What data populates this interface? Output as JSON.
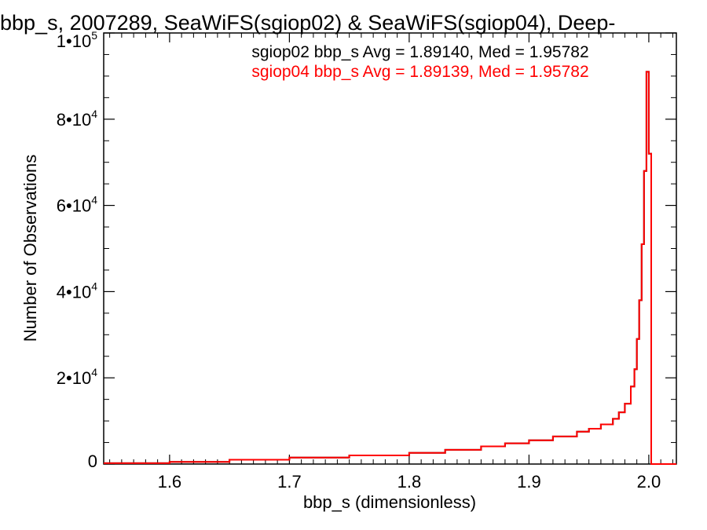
{
  "chart_data": {
    "type": "line",
    "title": "bbp_s, 2007289, SeaWiFS(sgiop02) & SeaWiFS(sgiop04), Deep-",
    "xlabel": "bbp_s (dimensionless)",
    "ylabel": "Number of Observations",
    "xlim": [
      1.545,
      2.023
    ],
    "ylim": [
      0,
      100000
    ],
    "grid": false,
    "legend_placement": "top-right",
    "x_ticks": [
      {
        "value": 1.6,
        "label": "1.6"
      },
      {
        "value": 1.7,
        "label": "1.7"
      },
      {
        "value": 1.8,
        "label": "1.8"
      },
      {
        "value": 1.9,
        "label": "1.9"
      },
      {
        "value": 2.0,
        "label": "2.0"
      }
    ],
    "y_ticks": [
      {
        "value": 0,
        "mantissa": "0",
        "exponent": ""
      },
      {
        "value": 20000,
        "mantissa": "2•10",
        "exponent": "4"
      },
      {
        "value": 40000,
        "mantissa": "4•10",
        "exponent": "4"
      },
      {
        "value": 60000,
        "mantissa": "6•10",
        "exponent": "4"
      },
      {
        "value": 80000,
        "mantissa": "8•10",
        "exponent": "4"
      },
      {
        "value": 100000,
        "mantissa": "1•10",
        "exponent": "5"
      }
    ],
    "stats": [
      {
        "text": "sgiop02 bbp_s Avg = 1.89140, Med = 1.95782",
        "color": "#000000"
      },
      {
        "text": "sgiop04 bbp_s Avg = 1.89139, Med = 1.95782",
        "color": "#ff0000"
      }
    ],
    "series": [
      {
        "color": "#000000",
        "x": [
          1.545,
          1.6,
          1.65,
          1.7,
          1.75,
          1.8,
          1.83,
          1.86,
          1.88,
          1.9,
          1.92,
          1.94,
          1.95,
          1.96,
          1.97,
          1.975,
          1.98,
          1.985,
          1.988,
          1.99,
          1.992,
          1.994,
          1.996,
          1.998,
          2.0,
          2.002
        ],
        "values": [
          200,
          500,
          1000,
          1500,
          2000,
          2600,
          3300,
          4100,
          4800,
          5500,
          6400,
          7500,
          8200,
          9200,
          10500,
          12000,
          14000,
          18000,
          22000,
          29000,
          38000,
          51000,
          68000,
          91000,
          72000,
          0
        ]
      },
      {
        "color": "#ff0000",
        "x": [
          1.545,
          1.6,
          1.65,
          1.7,
          1.75,
          1.8,
          1.83,
          1.86,
          1.88,
          1.9,
          1.92,
          1.94,
          1.95,
          1.96,
          1.97,
          1.975,
          1.98,
          1.985,
          1.988,
          1.99,
          1.992,
          1.994,
          1.996,
          1.998,
          2.0,
          2.002
        ],
        "values": [
          200,
          500,
          1000,
          1500,
          2000,
          2600,
          3300,
          4100,
          4800,
          5500,
          6400,
          7500,
          8200,
          9200,
          10500,
          12000,
          14000,
          18000,
          22000,
          29000,
          38000,
          51000,
          68000,
          91000,
          72000,
          0
        ]
      }
    ]
  }
}
